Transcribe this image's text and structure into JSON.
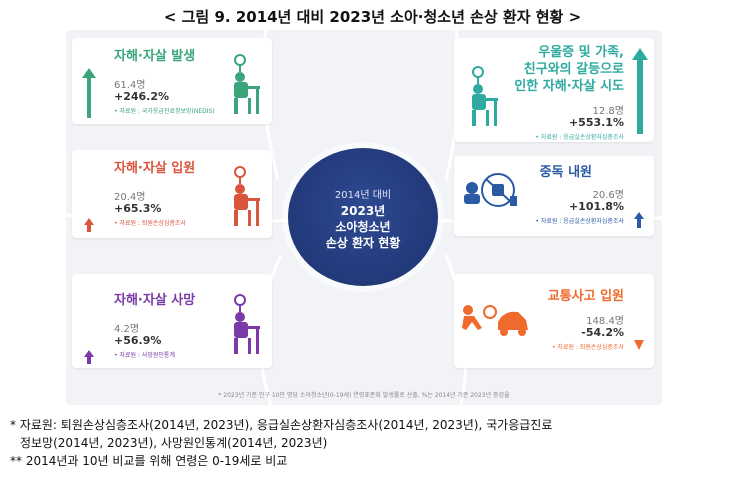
{
  "title": "< 그림 9. 2014년 대비 2023년 소아·청소년 손상 환자 현황 >",
  "center": {
    "line1": "2014년 대비",
    "line2": "2023년",
    "line3": "소아청소년",
    "line4": "손상 환자 현황"
  },
  "cards": {
    "self_harm_occurrence": {
      "title": "자해·자살 발생",
      "value": "61.4명",
      "change": "+246.2%",
      "source": "• 자료원 : 국가응급진료정보망(NEDIS)",
      "color": "#3aa57a",
      "direction": "up"
    },
    "self_harm_hospitalization": {
      "title": "자해·자살 입원",
      "value": "20.4명",
      "change": "+65.3%",
      "source": "• 자료원 : 퇴원손상심층조사",
      "color": "#d9553b",
      "direction": "up"
    },
    "self_harm_death": {
      "title": "자해·자살 사망",
      "value": "4.2명",
      "change": "+56.9%",
      "source": "• 자료원 : 사망원인통계",
      "color": "#7a3aa8",
      "direction": "up"
    },
    "self_harm_attempt_conflict": {
      "title_lines": [
        "우울증 및 가족,",
        "친구와의 갈등으로",
        "인한 자해·자살 시도"
      ],
      "value": "12.8명",
      "change": "+553.1%",
      "source": "• 자료원 : 응급실손상환자심층조사",
      "color": "#2eaaa0",
      "direction": "up"
    },
    "poisoning_hospitalization": {
      "title": "중독 내원",
      "value": "20.6명",
      "change": "+101.8%",
      "source": "• 자료원 : 응급실손상환자심층조사",
      "color": "#2b5aa5",
      "direction": "up"
    },
    "traffic_hospitalization": {
      "title": "교통사고 입원",
      "value": "148.4명",
      "change": "-54.2%",
      "source": "• 자료원 : 퇴원손상심층조사",
      "color": "#ef6a2c",
      "direction": "down"
    }
  },
  "infographic_footnote": "* 2023년 기준 인구 10만 명당 소아청소년(0-19세) 연령표준화 발생률로 산출, %는 2014년 기준 2023년 증감율",
  "notes": {
    "line1": "*  자료원: 퇴원손상심층조사(2014년, 2023년), 응급실손상환자심층조사(2014년, 2023년), 국가응급진료",
    "line1b": "정보망(2014년, 2023년), 사망원인통계(2014년, 2023년)",
    "line2": "** 2014년과 10년 비교를 위해 연령은 0-19세로 비교"
  }
}
